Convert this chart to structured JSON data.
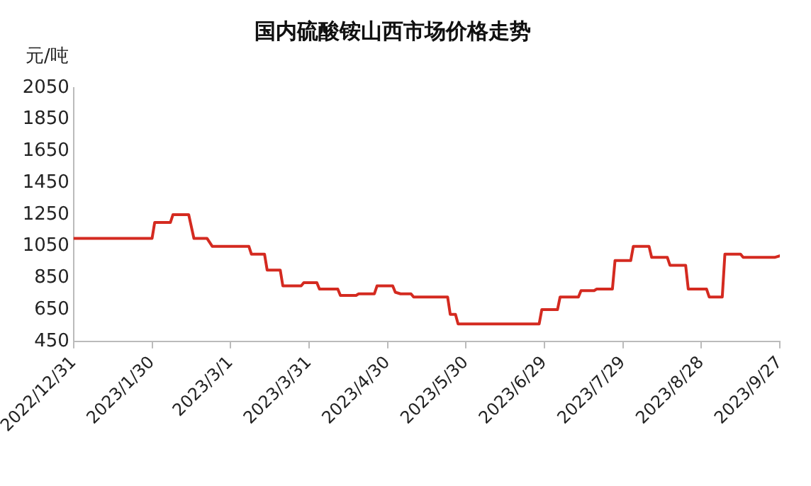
{
  "chart_data": {
    "type": "line",
    "title": "国内硫酸铵山西市场价格走势",
    "ylabel": "元/吨",
    "x": [
      "2022-12-31",
      "2023-01-30",
      "2023-01-31",
      "2023-02-06",
      "2023-02-07",
      "2023-02-13",
      "2023-02-15",
      "2023-02-20",
      "2023-02-22",
      "2023-03-08",
      "2023-03-09",
      "2023-03-14",
      "2023-03-15",
      "2023-03-20",
      "2023-03-21",
      "2023-03-28",
      "2023-03-29",
      "2023-04-03",
      "2023-04-04",
      "2023-04-11",
      "2023-04-12",
      "2023-04-18",
      "2023-04-19",
      "2023-04-25",
      "2023-04-26",
      "2023-05-02",
      "2023-05-03",
      "2023-05-05",
      "2023-05-09",
      "2023-05-10",
      "2023-05-23",
      "2023-05-24",
      "2023-05-26",
      "2023-05-27",
      "2023-06-27",
      "2023-06-28",
      "2023-07-04",
      "2023-07-05",
      "2023-07-12",
      "2023-07-13",
      "2023-07-18",
      "2023-07-19",
      "2023-07-25",
      "2023-07-26",
      "2023-08-01",
      "2023-08-02",
      "2023-08-08",
      "2023-08-09",
      "2023-08-15",
      "2023-08-16",
      "2023-08-22",
      "2023-08-23",
      "2023-08-30",
      "2023-08-31",
      "2023-09-05",
      "2023-09-06",
      "2023-09-12",
      "2023-09-13",
      "2023-09-25",
      "2023-09-27"
    ],
    "series": [
      {
        "color": "#d42a20",
        "values": [
          1100,
          1100,
          1200,
          1200,
          1250,
          1250,
          1100,
          1100,
          1050,
          1050,
          1000,
          1000,
          900,
          900,
          800,
          800,
          820,
          820,
          780,
          780,
          740,
          740,
          750,
          750,
          800,
          800,
          760,
          750,
          750,
          730,
          730,
          620,
          620,
          560,
          560,
          650,
          650,
          730,
          730,
          770,
          770,
          780,
          780,
          960,
          960,
          1050,
          1050,
          980,
          980,
          930,
          930,
          780,
          780,
          730,
          730,
          1000,
          1000,
          980,
          980,
          990
        ]
      }
    ],
    "xlim": [
      "2022-12-31",
      "2023-09-27"
    ],
    "xticks": [
      {
        "value": "2022-12-31",
        "label": "2022/12/31"
      },
      {
        "value": "2023-01-30",
        "label": "2023/1/30"
      },
      {
        "value": "2023-03-01",
        "label": "2023/3/1"
      },
      {
        "value": "2023-03-31",
        "label": "2023/3/31"
      },
      {
        "value": "2023-04-30",
        "label": "2023/4/30"
      },
      {
        "value": "2023-05-30",
        "label": "2023/5/30"
      },
      {
        "value": "2023-06-29",
        "label": "2023/6/29"
      },
      {
        "value": "2023-07-29",
        "label": "2023/7/29"
      },
      {
        "value": "2023-08-28",
        "label": "2023/8/28"
      },
      {
        "value": "2023-09-27",
        "label": "2023/9/27"
      }
    ],
    "ylim": [
      450,
      2050
    ],
    "yticks": [
      450,
      650,
      850,
      1050,
      1250,
      1450,
      1650,
      1850,
      2050
    ],
    "grid": false,
    "legend": false,
    "marker": "none",
    "line_style": "solid"
  }
}
